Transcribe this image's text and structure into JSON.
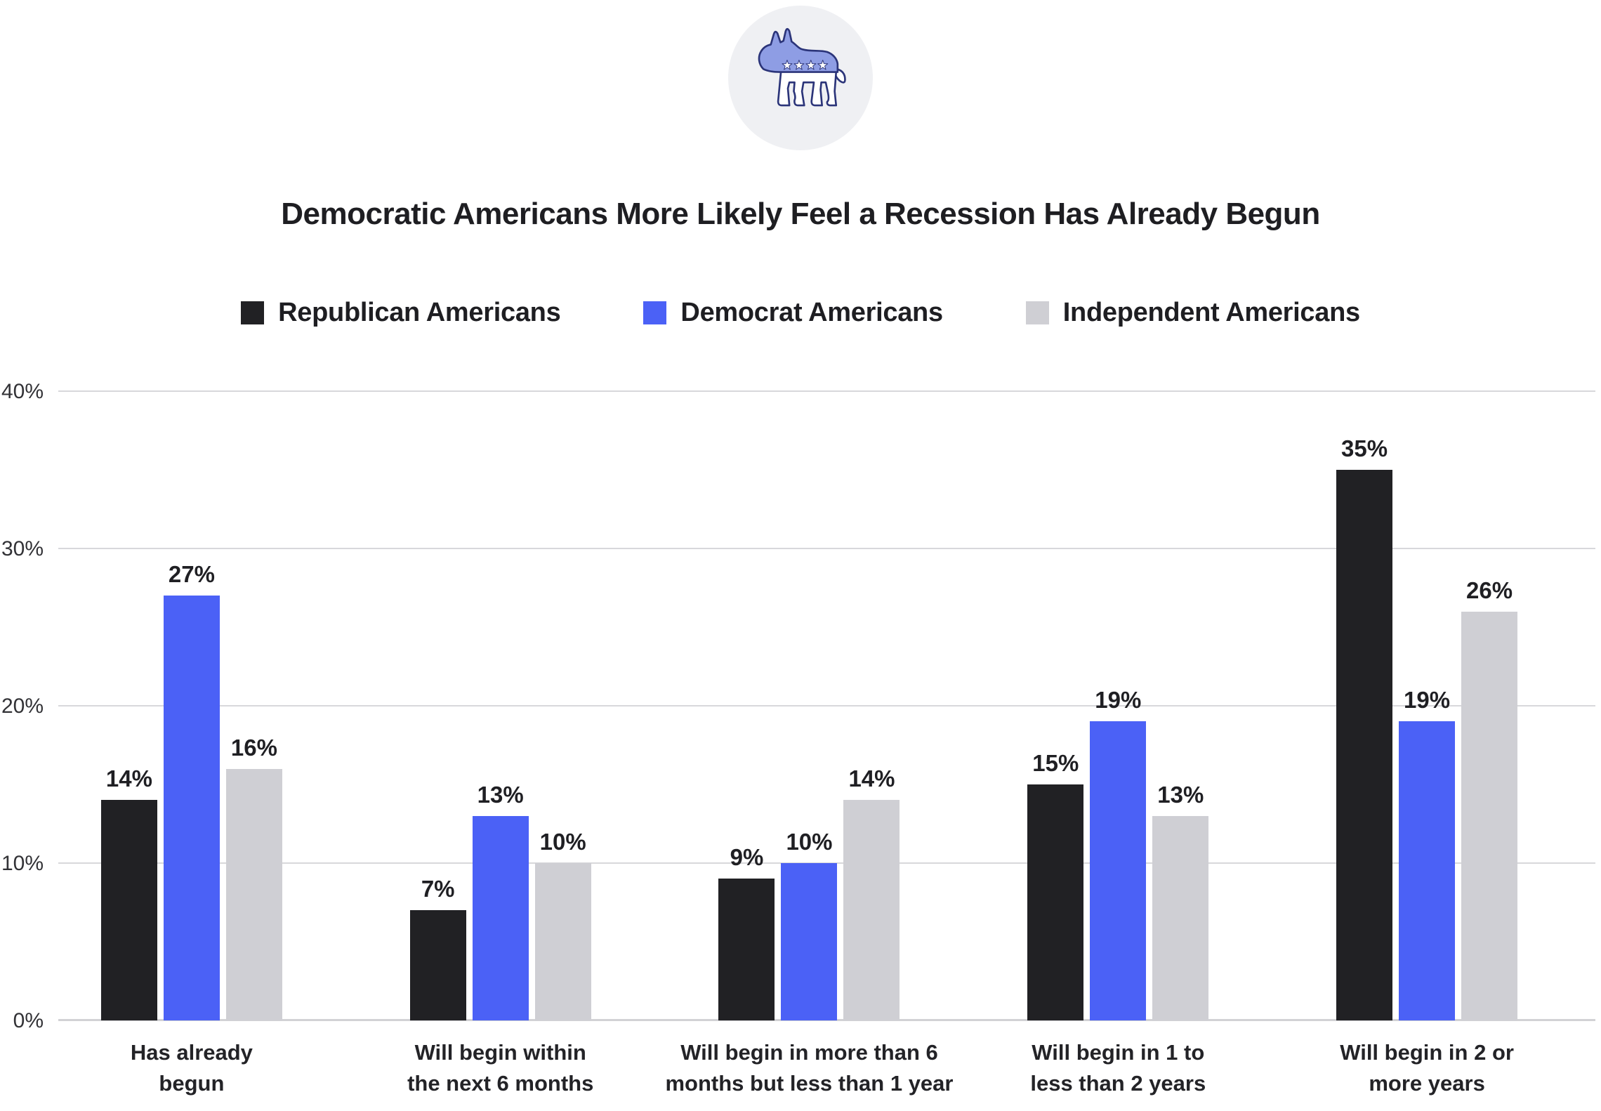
{
  "logo": {
    "icon": "democratic-donkey-icon",
    "circle_bg": "#eff0f3",
    "donkey_fill": "#8e9de4",
    "donkey_outline": "#2b3479",
    "star_fill": "#ffffff"
  },
  "header": {
    "title": "Democratic Americans More Likely Feel a Recession Has Already Begun"
  },
  "legend": [
    {
      "label": "Republican Americans",
      "color": "#212124"
    },
    {
      "label": "Democrat Americans",
      "color": "#4b61f6"
    },
    {
      "label": "Independent Americans",
      "color": "#cfcfd4"
    }
  ],
  "chart_data": {
    "type": "bar",
    "title": "Democratic Americans More Likely Feel a Recession Has Already Begun",
    "categories": [
      "Has already begun",
      "Will begin within the next 6 months",
      "Will begin in more than 6 months but less than 1 year",
      "Will begin in 1 to less than 2 years",
      "Will begin in 2 or more years"
    ],
    "category_lines": [
      [
        "Has already",
        "begun"
      ],
      [
        "Will begin within",
        "the next 6 months"
      ],
      [
        "Will begin in more than 6",
        "months but less than 1 year"
      ],
      [
        "Will begin in 1 to",
        "less than 2 years"
      ],
      [
        "Will begin in 2 or",
        "more years"
      ]
    ],
    "series": [
      {
        "name": "Republican Americans",
        "color": "#212124",
        "values": [
          14,
          7,
          9,
          15,
          35
        ]
      },
      {
        "name": "Democrat Americans",
        "color": "#4b61f6",
        "values": [
          27,
          13,
          10,
          19,
          19
        ]
      },
      {
        "name": "Independent Americans",
        "color": "#cfcfd4",
        "values": [
          16,
          10,
          14,
          13,
          26
        ]
      }
    ],
    "value_labels": [
      [
        "14%",
        "7%",
        "9%",
        "15%",
        "35%"
      ],
      [
        "27%",
        "13%",
        "10%",
        "19%",
        "19%"
      ],
      [
        "16%",
        "10%",
        "14%",
        "13%",
        "26%"
      ]
    ],
    "y_ticks": [
      "0%",
      "10%",
      "20%",
      "30%",
      "40%"
    ],
    "ylim": [
      0,
      40
    ],
    "grid": true,
    "legend_position": "top",
    "gridline_color": "#d8d8db",
    "axis_line_color": "#d2d2d5"
  }
}
